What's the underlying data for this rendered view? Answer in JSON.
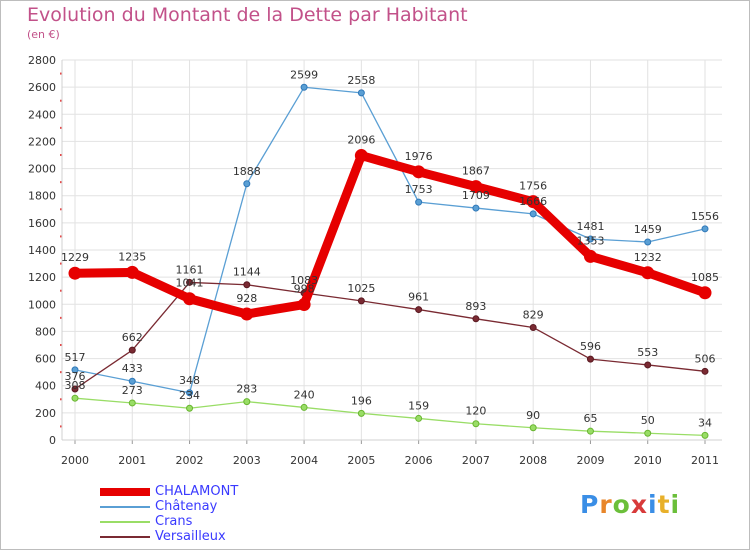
{
  "title": "Evolution du Montant de la Dette par Habitant",
  "subtitle": "(en €)",
  "logo": {
    "letters": [
      "P",
      "r",
      "o",
      "x",
      "i",
      "t",
      "i"
    ],
    "colors": [
      "#3a8ee6",
      "#e8862a",
      "#6bbf3a",
      "#d83a3a",
      "#3a8ee6",
      "#e8b02a",
      "#6bbf3a"
    ]
  },
  "chart_data": {
    "type": "line",
    "x": [
      "2000",
      "2001",
      "2002",
      "2003",
      "2004",
      "2005",
      "2006",
      "2007",
      "2008",
      "2009",
      "2010",
      "2011"
    ],
    "ylim": [
      0,
      2800
    ],
    "yticks": [
      "0",
      "200",
      "400",
      "600",
      "800",
      "1000",
      "1200",
      "1400",
      "1600",
      "1800",
      "2000",
      "2200",
      "2400",
      "2600",
      "2800"
    ],
    "grid": true,
    "legend_position": "bottom-left",
    "series": [
      {
        "name": "CHALAMONT",
        "color": "#e60000",
        "values": [
          1229,
          1235,
          1041,
          928,
          998,
          2096,
          1976,
          1867,
          1756,
          1353,
          1232,
          1085
        ],
        "labels": [
          "1229",
          "1235",
          "1041",
          "928",
          "998",
          "2096",
          "1976",
          "1867",
          "1756",
          "1353",
          "1232",
          "1085"
        ]
      },
      {
        "name": "Châtenay",
        "color": "#5a9fd4",
        "values": [
          517,
          433,
          348,
          1888,
          2599,
          2558,
          1753,
          1709,
          1666,
          1481,
          1459,
          1556
        ],
        "labels": [
          "517",
          "433",
          "348",
          "1888",
          "2599",
          "2558",
          "1753",
          "1709",
          "1666",
          "1481",
          "1459",
          "1556"
        ]
      },
      {
        "name": "Crans",
        "color": "#99dd66",
        "values": [
          308,
          273,
          234,
          283,
          240,
          196,
          159,
          120,
          90,
          65,
          50,
          34
        ],
        "labels": [
          "308",
          "273",
          "234",
          "283",
          "240",
          "196",
          "159",
          "120",
          "90",
          "65",
          "50",
          "34"
        ]
      },
      {
        "name": "Versailleux",
        "color": "#7a2a32",
        "values": [
          376,
          662,
          1161,
          1144,
          1083,
          1025,
          961,
          893,
          829,
          596,
          553,
          506
        ],
        "labels": [
          "376",
          "662",
          "1161",
          "1144",
          "1083",
          "1025",
          "961",
          "893",
          "829",
          "596",
          "553",
          "506"
        ]
      }
    ]
  }
}
